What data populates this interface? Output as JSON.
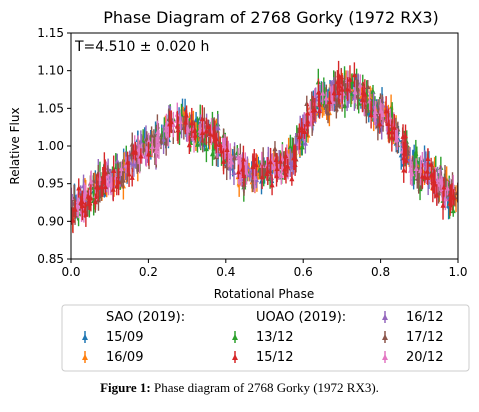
{
  "chart_data": {
    "type": "scatter",
    "title": "Phase Diagram of 2768 Gorky (1972 RX3)",
    "annotation": "T=4.510 ± 0.020 h",
    "xlabel": "Rotational Phase",
    "ylabel": "Relative Flux",
    "xlim": [
      0.0,
      1.0
    ],
    "ylim": [
      0.85,
      1.15
    ],
    "xticks": [
      "0.0",
      "0.2",
      "0.4",
      "0.6",
      "0.8",
      "1.0"
    ],
    "yticks": [
      "0.85",
      "0.90",
      "0.95",
      "1.00",
      "1.05",
      "1.10",
      "1.15"
    ],
    "grid": false,
    "legend_placement": "bottom",
    "legend_groups": [
      {
        "title": "SAO (2019):",
        "entries": [
          "15/09",
          "16/09"
        ]
      },
      {
        "title": "UOAO (2019):",
        "entries": [
          "13/12",
          "15/12"
        ]
      },
      {
        "title": "",
        "entries": [
          "16/12",
          "17/12",
          "20/12"
        ]
      }
    ],
    "light_curve_model": {
      "description_points_phase": [
        0.0,
        0.1,
        0.2,
        0.28,
        0.35,
        0.45,
        0.55,
        0.65,
        0.72,
        0.8,
        0.9,
        1.0
      ],
      "description_points_flux": [
        0.92,
        0.955,
        1.0,
        1.03,
        1.015,
        0.965,
        0.975,
        1.06,
        1.08,
        1.045,
        0.97,
        0.93
      ]
    },
    "series": [
      {
        "name": "15/09",
        "color": "#1f77b4",
        "phase_range": [
          0.0,
          1.0
        ],
        "flux_scatter": 0.018
      },
      {
        "name": "16/09",
        "color": "#ff7f0e",
        "phase_range": [
          0.0,
          1.0
        ],
        "flux_scatter": 0.018
      },
      {
        "name": "13/12",
        "color": "#2ca02c",
        "phase_range": [
          0.0,
          1.0
        ],
        "flux_scatter": 0.025
      },
      {
        "name": "15/12",
        "color": "#d62728",
        "phase_range": [
          0.0,
          1.0
        ],
        "flux_scatter": 0.025
      },
      {
        "name": "16/12",
        "color": "#9467bd",
        "phase_range": [
          0.0,
          1.0
        ],
        "flux_scatter": 0.02
      },
      {
        "name": "17/12",
        "color": "#8c564b",
        "phase_range": [
          0.0,
          1.0
        ],
        "flux_scatter": 0.02
      },
      {
        "name": "20/12",
        "color": "#e377c2",
        "phase_range": [
          0.0,
          1.0
        ],
        "flux_scatter": 0.015
      }
    ]
  },
  "caption": {
    "label": "Figure 1:",
    "text": " Phase diagram of 2768 Gorky (1972 RX3)."
  }
}
